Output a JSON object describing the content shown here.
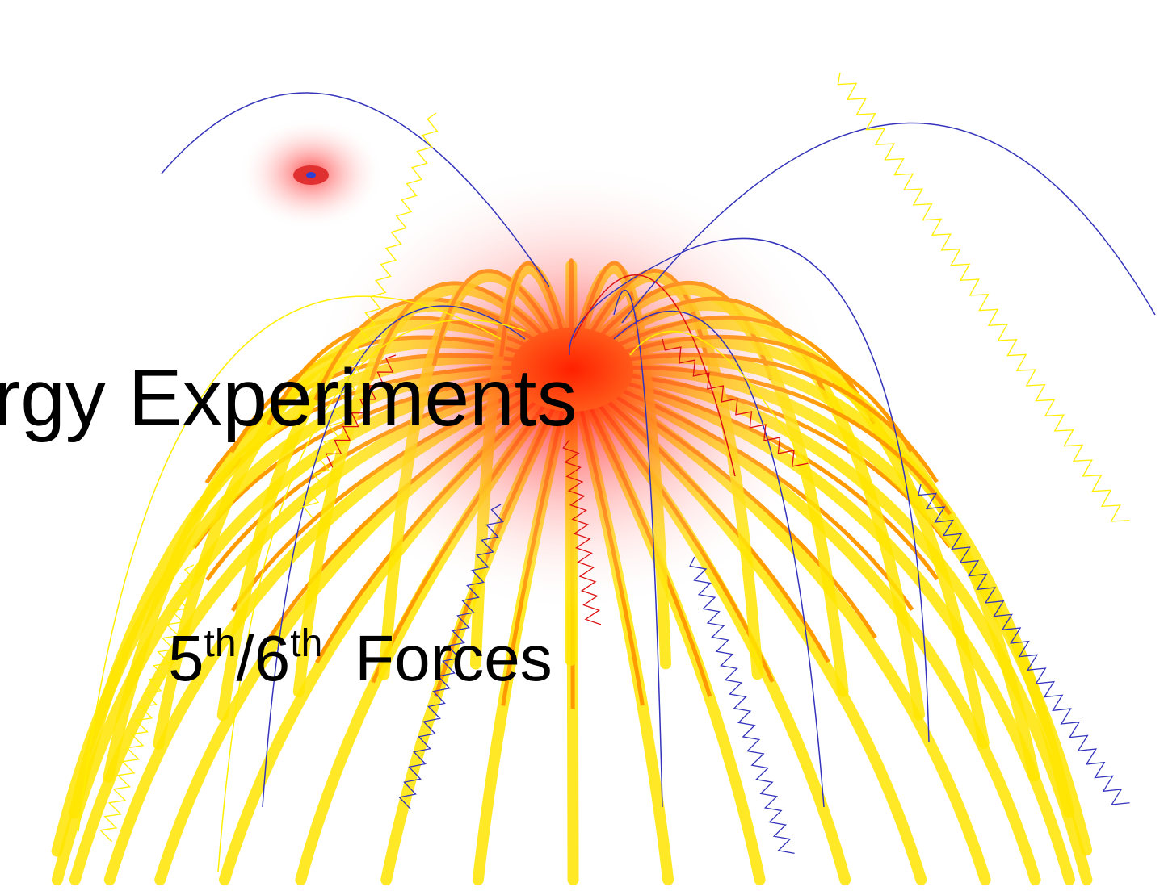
{
  "slide": {
    "title": "rgy Experiments",
    "subtitle": {
      "parts": [
        "5",
        "th",
        "/6",
        "th",
        "Forces"
      ]
    }
  }
}
